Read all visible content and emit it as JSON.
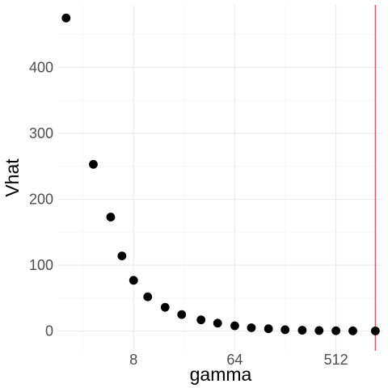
{
  "chart_data": {
    "type": "scatter",
    "title": "",
    "xlabel": "gamma",
    "ylabel": "Vhat",
    "x_scale": "log2",
    "xlim": [
      1.7,
      1350
    ],
    "ylim": [
      -30,
      495
    ],
    "x_ticks": [
      8,
      64,
      512
    ],
    "x_tick_labels": [
      "8",
      "64",
      "512"
    ],
    "y_ticks": [
      0,
      100,
      200,
      300,
      400
    ],
    "y_tick_labels": [
      "0",
      "100",
      "200",
      "300",
      "400"
    ],
    "grid": true,
    "legend": "none",
    "marker_color": "#000000",
    "vline": {
      "x": 1150,
      "color": "#e05a63"
    },
    "series": [
      {
        "points": [
          {
            "x": 2,
            "y": 475
          },
          {
            "x": 3.5,
            "y": 253
          },
          {
            "x": 5,
            "y": 173
          },
          {
            "x": 6.3,
            "y": 114
          },
          {
            "x": 8,
            "y": 77
          },
          {
            "x": 10.7,
            "y": 52
          },
          {
            "x": 15.3,
            "y": 36
          },
          {
            "x": 21.5,
            "y": 25
          },
          {
            "x": 32,
            "y": 17
          },
          {
            "x": 45,
            "y": 12
          },
          {
            "x": 64,
            "y": 8
          },
          {
            "x": 90,
            "y": 5
          },
          {
            "x": 128,
            "y": 3.5
          },
          {
            "x": 180,
            "y": 2
          },
          {
            "x": 256,
            "y": 1.2
          },
          {
            "x": 362,
            "y": 0.8
          },
          {
            "x": 512,
            "y": 0.5
          },
          {
            "x": 724,
            "y": 0.3
          },
          {
            "x": 1150,
            "y": 0.2
          }
        ]
      }
    ]
  }
}
